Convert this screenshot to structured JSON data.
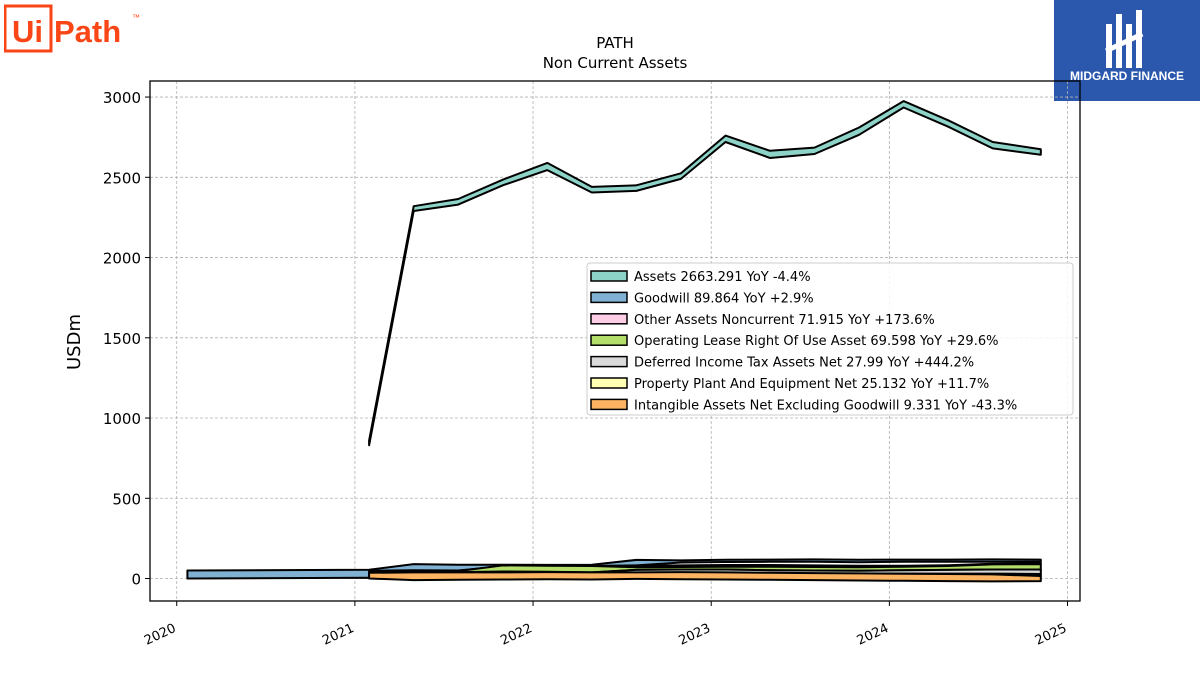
{
  "logos": {
    "uipath": {
      "text_a": "Ui",
      "text_b": "Path",
      "tm": "™",
      "brand_color": "#fa4616"
    },
    "midgard": {
      "text": "MIDGARD FINANCE",
      "bg_color": "#2b58ad"
    }
  },
  "chart_data": {
    "type": "area",
    "title": "PATH",
    "subtitle": "Non Current  Assets",
    "xlabel": "",
    "ylabel": "USDm",
    "xlim": [
      2019.85,
      2025.07
    ],
    "ylim": [
      -140,
      3100
    ],
    "xticks": [
      2020,
      2021,
      2022,
      2023,
      2024,
      2025
    ],
    "yticks": [
      0,
      500,
      1000,
      1500,
      2000,
      2500,
      3000
    ],
    "grid": true,
    "legend_position": "center-right",
    "legend": [
      "Assets  2663.291 YoY -4.4%",
      "Goodwill  89.864 YoY +2.9%",
      "Other Assets Noncurrent  71.915 YoY +173.6%",
      "Operating Lease Right Of Use Asset  69.598 YoY +29.6%",
      "Deferred Income Tax Assets Net  27.99 YoY +444.2%",
      "Property Plant And Equipment Net  25.132 YoY +11.7%",
      "Intangible Assets Net Excluding Goodwill  9.331 YoY -43.3%"
    ],
    "series": [
      {
        "color": "#8dd3c7",
        "x": [
          2021.08,
          2021.33,
          2021.58,
          2021.83,
          2022.08,
          2022.33,
          2022.58,
          2022.83,
          2023.08,
          2023.33,
          2023.58,
          2023.83,
          2024.08,
          2024.33,
          2024.58,
          2024.85
        ],
        "lower": [
          830,
          2290,
          2330,
          2450,
          2545,
          2405,
          2415,
          2490,
          2720,
          2620,
          2645,
          2765,
          2935,
          2815,
          2680,
          2640
        ],
        "upper": [
          860,
          2320,
          2365,
          2485,
          2590,
          2440,
          2450,
          2525,
          2760,
          2665,
          2685,
          2810,
          2975,
          2855,
          2720,
          2675
        ]
      },
      {
        "color": "#80b1d3",
        "x": [
          2020.06,
          2021.08,
          2021.33,
          2021.58,
          2021.83,
          2022.08,
          2022.33,
          2022.58,
          2022.83,
          2023.08,
          2023.33,
          2023.58,
          2023.83,
          2024.08,
          2024.33,
          2024.58,
          2024.85
        ],
        "lower": [
          0,
          5,
          0,
          40,
          78,
          78,
          78,
          82,
          100,
          103,
          104,
          104,
          102,
          104,
          104,
          105,
          104
        ],
        "upper": [
          50,
          55,
          90,
          86,
          86,
          85,
          86,
          116,
          113,
          117,
          118,
          119,
          117,
          118,
          118,
          119,
          118
        ]
      },
      {
        "color": "#fccde5",
        "x": [
          2021.08,
          2021.33,
          2021.58,
          2021.83,
          2022.08,
          2022.33,
          2022.58,
          2022.83,
          2023.08,
          2023.33,
          2023.58,
          2023.83,
          2024.08,
          2024.33,
          2024.58,
          2024.85
        ],
        "lower": [
          42,
          44,
          45,
          70,
          72,
          72,
          74,
          76,
          78,
          78,
          76,
          74,
          74,
          76,
          86,
          88
        ],
        "upper": [
          48,
          52,
          50,
          76,
          78,
          78,
          80,
          82,
          84,
          84,
          82,
          80,
          80,
          83,
          92,
          96
        ]
      },
      {
        "color": "#b3de69",
        "x": [
          2021.08,
          2021.33,
          2021.58,
          2021.83,
          2022.08,
          2022.33,
          2022.58,
          2022.83,
          2023.08,
          2023.33,
          2023.58,
          2023.83,
          2024.08,
          2024.33,
          2024.58,
          2024.85
        ],
        "lower": [
          38,
          38,
          40,
          44,
          42,
          38,
          54,
          56,
          56,
          52,
          50,
          48,
          52,
          54,
          56,
          50
        ],
        "upper": [
          42,
          44,
          46,
          82,
          80,
          78,
          70,
          72,
          74,
          74,
          72,
          70,
          74,
          78,
          88,
          90
        ]
      },
      {
        "color": "#d9d9d9",
        "x": [
          2021.08,
          2021.33,
          2021.58,
          2021.83,
          2022.08,
          2022.33,
          2022.58,
          2022.83,
          2023.08,
          2023.33,
          2023.58,
          2023.83,
          2024.08,
          2024.33,
          2024.58,
          2024.85
        ],
        "lower": [
          28,
          30,
          28,
          26,
          26,
          24,
          36,
          36,
          34,
          32,
          30,
          28,
          30,
          30,
          30,
          28
        ],
        "upper": [
          36,
          38,
          38,
          38,
          40,
          38,
          54,
          56,
          56,
          52,
          50,
          48,
          52,
          54,
          56,
          56
        ]
      },
      {
        "color": "#ffffb3",
        "x": [
          2021.08,
          2021.33,
          2021.58,
          2021.83,
          2022.08,
          2022.33,
          2022.58,
          2022.83,
          2023.08,
          2023.33,
          2023.58,
          2023.83,
          2024.08,
          2024.33,
          2024.58,
          2024.85
        ],
        "lower": [
          8,
          10,
          8,
          10,
          12,
          10,
          12,
          10,
          8,
          6,
          4,
          2,
          2,
          2,
          2,
          16
        ],
        "upper": [
          28,
          30,
          28,
          26,
          26,
          24,
          36,
          36,
          34,
          32,
          30,
          28,
          30,
          30,
          30,
          28
        ]
      },
      {
        "color": "#fdb462",
        "x": [
          2021.08,
          2021.33,
          2021.58,
          2021.83,
          2022.08,
          2022.33,
          2022.58,
          2022.83,
          2023.08,
          2023.33,
          2023.58,
          2023.83,
          2024.08,
          2024.33,
          2024.58,
          2024.85
        ],
        "lower": [
          0,
          -10,
          -8,
          -6,
          -4,
          -6,
          -2,
          -4,
          -6,
          -8,
          -10,
          -12,
          -14,
          -16,
          -18,
          -16
        ],
        "upper": [
          36,
          38,
          38,
          38,
          40,
          38,
          38,
          40,
          38,
          36,
          34,
          32,
          30,
          28,
          26,
          16
        ]
      }
    ]
  }
}
